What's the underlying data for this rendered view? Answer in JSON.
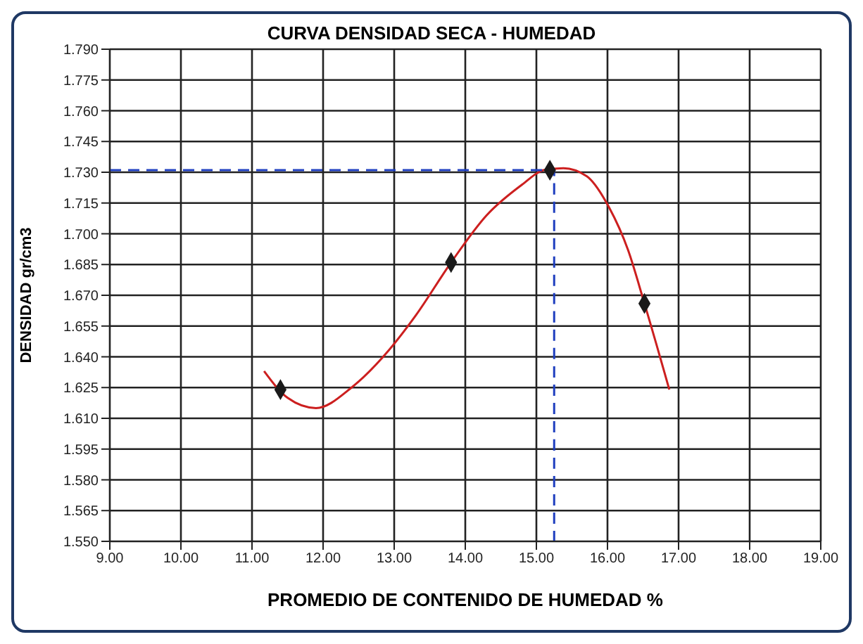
{
  "chart_data": {
    "type": "line",
    "title": "CURVA DENSIDAD SECA - HUMEDAD",
    "xlabel": "PROMEDIO DE  CONTENIDO DE HUMEDAD %",
    "ylabel": "DENSIDAD gr/cm3",
    "xlim": [
      9,
      19
    ],
    "xticks": [
      {
        "value": 9,
        "label": "9.00"
      },
      {
        "value": 10,
        "label": "10.00"
      },
      {
        "value": 11,
        "label": "11.00"
      },
      {
        "value": 12,
        "label": "12.00"
      },
      {
        "value": 13,
        "label": "13.00"
      },
      {
        "value": 14,
        "label": "14.00"
      },
      {
        "value": 15,
        "label": "15.00"
      },
      {
        "value": 16,
        "label": "16.00"
      },
      {
        "value": 17,
        "label": "17.00"
      },
      {
        "value": 18,
        "label": "18.00"
      },
      {
        "value": 19,
        "label": "19.00"
      }
    ],
    "ylim": [
      1.55,
      1.79
    ],
    "yticks": [
      {
        "value": 1.55,
        "label": "1.550"
      },
      {
        "value": 1.565,
        "label": "1.565"
      },
      {
        "value": 1.58,
        "label": "1.580"
      },
      {
        "value": 1.595,
        "label": "1.595"
      },
      {
        "value": 1.61,
        "label": "1.610"
      },
      {
        "value": 1.625,
        "label": "1.625"
      },
      {
        "value": 1.64,
        "label": "1.640"
      },
      {
        "value": 1.655,
        "label": "1.655"
      },
      {
        "value": 1.67,
        "label": "1.670"
      },
      {
        "value": 1.685,
        "label": "1.685"
      },
      {
        "value": 1.7,
        "label": "1.700"
      },
      {
        "value": 1.715,
        "label": "1.715"
      },
      {
        "value": 1.73,
        "label": "1.730"
      },
      {
        "value": 1.745,
        "label": "1.745"
      },
      {
        "value": 1.76,
        "label": "1.760"
      },
      {
        "value": 1.775,
        "label": "1.775"
      },
      {
        "value": 1.79,
        "label": "1.790"
      }
    ],
    "grid": true,
    "series": [
      {
        "color": "#cc1f1f",
        "marker": "none",
        "x": [
          11.17,
          11.5,
          11.9,
          12.4,
          12.87,
          13.3,
          13.8,
          14.3,
          14.8,
          15.1,
          15.38,
          15.71,
          16.02,
          16.29,
          16.52,
          16.87
        ],
        "values": [
          1.633,
          1.62,
          1.615,
          1.625,
          1.641,
          1.66,
          1.686,
          1.709,
          1.724,
          1.731,
          1.732,
          1.728,
          1.713,
          1.692,
          1.666,
          1.624
        ]
      },
      {
        "type": "scatter",
        "color": "#1a1a1a",
        "marker": "diamond",
        "x": [
          11.4,
          13.8,
          15.19,
          16.52
        ],
        "values": [
          1.624,
          1.686,
          1.731,
          1.666
        ]
      },
      {
        "type": "line",
        "color": "#1f3fbf",
        "marker": "none",
        "line_style": "dashed",
        "x": [
          9,
          15.25,
          15.25
        ],
        "values": [
          1.731,
          1.731,
          1.55
        ]
      }
    ]
  }
}
